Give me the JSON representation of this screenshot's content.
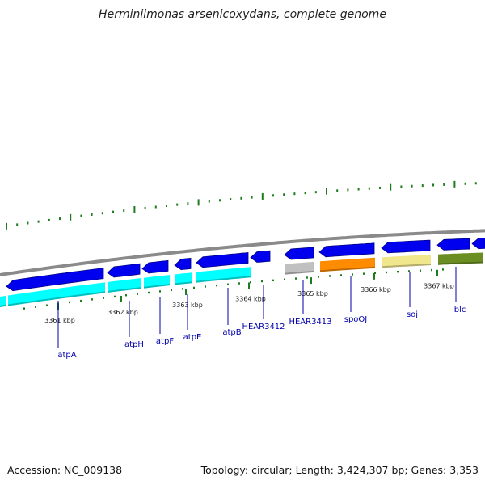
{
  "title": "Herminiimonas arsenicoxydans, complete genome",
  "footer": {
    "accession": "Accession: NC_009138",
    "topology": "Topology: circular; Length: 3,424,307 bp; Genes: 3,353"
  },
  "ticks": [
    "3361 kbp",
    "3362 kbp",
    "3363 kbp",
    "3364 kbp",
    "3365 kbp",
    "3366 kbp",
    "3367 kbp"
  ],
  "genes": [
    {
      "name": "atpA",
      "color": "#00ffff"
    },
    {
      "name": "atpH",
      "color": "#00ffff"
    },
    {
      "name": "atpF",
      "color": "#00ffff"
    },
    {
      "name": "atpE",
      "color": "#00ffff"
    },
    {
      "name": "atpB",
      "color": "#00ffff"
    },
    {
      "name": "HEAR3412",
      "color": "#0000ee"
    },
    {
      "name": "HEAR3413",
      "color": "#c0c0c0"
    },
    {
      "name": "spoOJ",
      "color": "#ff8c00"
    },
    {
      "name": "soj",
      "color": "#f0e68c"
    },
    {
      "name": "blc",
      "color": "#6b8e23"
    }
  ],
  "colors": {
    "cds": "#0000ee",
    "backbone": "#8a8a8a",
    "gc_plot": "#1e7b1e",
    "label": "#0000aa"
  }
}
